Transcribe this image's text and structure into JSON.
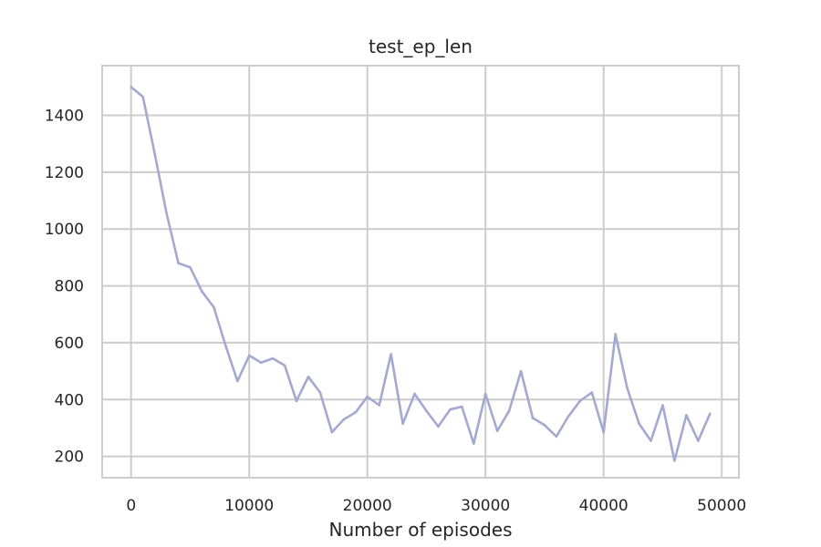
{
  "chart_data": {
    "type": "line",
    "title": "test_ep_len",
    "xlabel": "Number of episodes",
    "ylabel": "",
    "xlim": [
      -2450,
      51450
    ],
    "ylim": [
      125,
      1575
    ],
    "xticks": [
      0,
      10000,
      20000,
      30000,
      40000,
      50000
    ],
    "yticks": [
      200,
      400,
      600,
      800,
      1000,
      1200,
      1400
    ],
    "grid": true,
    "legend": "none",
    "line_color": "#a3a9d0",
    "series": [
      {
        "x": [
          0,
          1000,
          2000,
          3000,
          4000,
          5000,
          6000,
          7000,
          8000,
          9000,
          10000,
          11000,
          12000,
          13000,
          14000,
          15000,
          16000,
          17000,
          18000,
          19000,
          20000,
          21000,
          22000,
          23000,
          24000,
          25000,
          26000,
          27000,
          28000,
          29000,
          30000,
          31000,
          32000,
          33000,
          34000,
          35000,
          36000,
          37000,
          38000,
          39000,
          40000,
          41000,
          42000,
          43000,
          44000,
          45000,
          46000,
          47000,
          48000,
          49000
        ],
        "values": [
          1500,
          1465,
          1265,
          1055,
          880,
          865,
          780,
          725,
          590,
          465,
          555,
          530,
          545,
          520,
          395,
          480,
          425,
          285,
          330,
          355,
          410,
          380,
          560,
          315,
          420,
          360,
          305,
          365,
          375,
          245,
          420,
          290,
          360,
          500,
          335,
          310,
          270,
          340,
          395,
          425,
          285,
          630,
          440,
          315,
          255,
          380,
          185,
          345,
          255,
          350
        ]
      }
    ]
  }
}
